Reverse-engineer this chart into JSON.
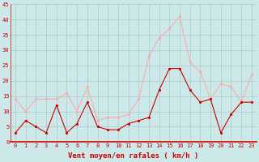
{
  "title": "",
  "xlabel": "Vent moyen/en rafales ( km/h )",
  "x_labels": [
    "0",
    "1",
    "2",
    "3",
    "4",
    "5",
    "6",
    "7",
    "8",
    "9",
    "10",
    "11",
    "12",
    "13",
    "14",
    "15",
    "16",
    "17",
    "18",
    "19",
    "20",
    "21",
    "22",
    "23"
  ],
  "x_values": [
    0,
    1,
    2,
    3,
    4,
    5,
    6,
    7,
    8,
    9,
    10,
    11,
    12,
    13,
    14,
    15,
    16,
    17,
    18,
    19,
    20,
    21,
    22,
    23
  ],
  "mean_wind": [
    3,
    7,
    5,
    3,
    12,
    3,
    6,
    13,
    5,
    4,
    4,
    6,
    7,
    8,
    17,
    24,
    24,
    17,
    13,
    14,
    3,
    9,
    13,
    13
  ],
  "gust_wind": [
    14,
    10,
    14,
    14,
    14,
    16,
    10,
    18,
    7,
    8,
    8,
    9,
    14,
    28,
    34,
    37,
    41,
    26,
    23,
    14,
    19,
    18,
    13,
    22
  ],
  "mean_color": "#cc0000",
  "gust_color": "#ffaaaa",
  "bg_color": "#cce8e8",
  "grid_color": "#aacccc",
  "ylim": [
    0,
    45
  ],
  "yticks": [
    0,
    5,
    10,
    15,
    20,
    25,
    30,
    35,
    40,
    45
  ],
  "marker_size": 2,
  "linewidth": 0.8,
  "xlabel_color": "#cc0000",
  "tick_color": "#cc0000",
  "axis_line_color": "#cc0000",
  "tick_fontsize": 5,
  "xlabel_fontsize": 6.5
}
